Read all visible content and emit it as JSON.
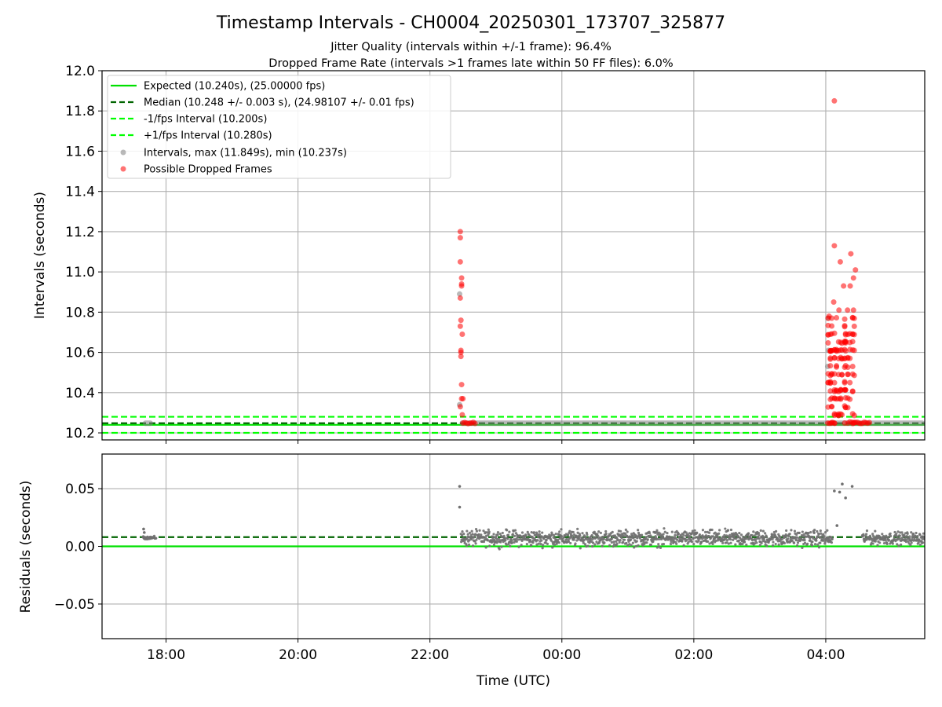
{
  "chart_data": {
    "type": "scatter",
    "title": "Timestamp Intervals - CH0004_20250301_173707_325877",
    "subtitles": [
      "Jitter Quality (intervals within +/-1 frame): 96.4%",
      "Dropped Frame Rate (intervals >1 frames late within 50 FF files): 6.0%"
    ],
    "xlabel": "Time (UTC)",
    "x_ticks": [
      "18:00",
      "20:00",
      "22:00",
      "00:00",
      "02:00",
      "04:00"
    ],
    "x_tick_hours": [
      18,
      20,
      22,
      24,
      26,
      28
    ],
    "xlim_hours": [
      17.03,
      29.5
    ],
    "grid": true,
    "panels": [
      {
        "name": "intervals",
        "ylabel": "Intervals (seconds)",
        "ylim": [
          10.165,
          12.0
        ],
        "y_ticks": [
          "10.2",
          "10.4",
          "10.6",
          "10.8",
          "11.0",
          "11.2",
          "11.4",
          "11.6",
          "11.8",
          "12.0"
        ],
        "y_tick_values": [
          10.2,
          10.4,
          10.6,
          10.8,
          11.0,
          11.2,
          11.4,
          11.6,
          11.8,
          12.0
        ],
        "legend_location": "top-left",
        "legend": [
          "Expected (10.240s), (25.00000 fps)",
          "Median (10.248 +/- 0.003 s), (24.98107 +/- 0.01 fps)",
          "-1/fps Interval (10.200s)",
          "+1/fps Interval (10.280s)",
          "Intervals, max (11.849s), min (10.237s)",
          "Possible Dropped Frames"
        ],
        "reference_lines": [
          {
            "label": "Expected",
            "y": 10.24,
            "style": "solid",
            "color": "#00e000"
          },
          {
            "label": "Median",
            "y": 10.248,
            "style": "dashed",
            "color": "#006400"
          },
          {
            "label": "-1/fps Interval",
            "y": 10.2,
            "style": "dashed",
            "color": "#00ff00"
          },
          {
            "label": "+1/fps Interval",
            "y": 10.28,
            "style": "dashed",
            "color": "#00ff00"
          }
        ],
        "interval_segments": [
          {
            "x_start": 17.65,
            "x_end": 17.8,
            "y": 10.248
          },
          {
            "x_start": 22.45,
            "x_end": 29.5,
            "y": 10.248
          }
        ],
        "gray_points": [
          {
            "x": 22.45,
            "y": 10.89
          },
          {
            "x": 22.45,
            "y": 10.34
          },
          {
            "x": 28.04,
            "y": 10.77
          },
          {
            "x": 28.04,
            "y": 10.61
          },
          {
            "x": 28.03,
            "y": 10.53
          }
        ],
        "dropped_frames": [
          {
            "x": 22.46,
            "y": 11.2
          },
          {
            "x": 22.46,
            "y": 11.17
          },
          {
            "x": 22.46,
            "y": 11.05
          },
          {
            "x": 22.48,
            "y": 10.97
          },
          {
            "x": 22.48,
            "y": 10.94
          },
          {
            "x": 22.48,
            "y": 10.93
          },
          {
            "x": 22.46,
            "y": 10.87
          },
          {
            "x": 22.47,
            "y": 10.76
          },
          {
            "x": 22.46,
            "y": 10.73
          },
          {
            "x": 22.49,
            "y": 10.69
          },
          {
            "x": 22.47,
            "y": 10.61
          },
          {
            "x": 22.47,
            "y": 10.6
          },
          {
            "x": 22.47,
            "y": 10.58
          },
          {
            "x": 22.48,
            "y": 10.44
          },
          {
            "x": 22.48,
            "y": 10.37
          },
          {
            "x": 22.5,
            "y": 10.37
          },
          {
            "x": 22.46,
            "y": 10.33
          },
          {
            "x": 22.49,
            "y": 10.29
          },
          {
            "x": 28.13,
            "y": 11.85
          },
          {
            "x": 28.13,
            "y": 11.13
          },
          {
            "x": 28.38,
            "y": 11.09
          },
          {
            "x": 28.45,
            "y": 11.01
          },
          {
            "x": 28.22,
            "y": 11.05
          },
          {
            "x": 28.27,
            "y": 10.93
          },
          {
            "x": 28.37,
            "y": 10.93
          },
          {
            "x": 28.42,
            "y": 10.97
          },
          {
            "x": 28.12,
            "y": 10.85
          },
          {
            "x": 28.05,
            "y": 10.78
          },
          {
            "x": 28.2,
            "y": 10.81
          },
          {
            "x": 28.33,
            "y": 10.81
          },
          {
            "x": 28.42,
            "y": 10.81
          }
        ],
        "dropped_clusters": [
          {
            "x_start": 28.03,
            "x_end": 28.45,
            "y_min": 10.25,
            "y_max": 10.8
          }
        ],
        "dropped_baseline_runs": [
          {
            "x_start": 22.5,
            "x_end": 22.7,
            "y": 10.25
          },
          {
            "x_start": 28.03,
            "x_end": 28.16,
            "y": 10.25
          },
          {
            "x_start": 28.4,
            "x_end": 28.68,
            "y": 10.25
          }
        ]
      },
      {
        "name": "residuals",
        "ylabel": "Residuals (seconds)",
        "ylim": [
          -0.08,
          0.08
        ],
        "y_ticks": [
          "−0.05",
          "0.00",
          "0.05"
        ],
        "y_tick_values": [
          -0.05,
          0.0,
          0.05
        ],
        "reference_lines": [
          {
            "label": "Expected",
            "y": 0.0,
            "style": "solid",
            "color": "#00e000"
          },
          {
            "label": "Median",
            "y": 0.008,
            "style": "dashed",
            "color": "#006400"
          }
        ],
        "residual_bands": [
          {
            "x_start": 17.65,
            "x_end": 17.85,
            "y_min": 0.006,
            "y_max": 0.009
          },
          {
            "x_start": 22.47,
            "x_end": 28.03,
            "y_min": -0.002,
            "y_max": 0.016
          },
          {
            "x_start": 28.03,
            "x_end": 28.1,
            "y_min": 0.0,
            "y_max": 0.012
          },
          {
            "x_start": 28.55,
            "x_end": 29.5,
            "y_min": 0.0,
            "y_max": 0.014
          }
        ],
        "residual_points": [
          {
            "x": 17.66,
            "y": 0.015
          },
          {
            "x": 17.67,
            "y": 0.012
          },
          {
            "x": 22.45,
            "y": 0.052
          },
          {
            "x": 22.45,
            "y": 0.034
          },
          {
            "x": 28.13,
            "y": 0.048
          },
          {
            "x": 28.21,
            "y": 0.047
          },
          {
            "x": 28.25,
            "y": 0.054
          },
          {
            "x": 28.4,
            "y": 0.052
          },
          {
            "x": 28.3,
            "y": 0.042
          },
          {
            "x": 28.17,
            "y": 0.018
          }
        ]
      }
    ]
  }
}
